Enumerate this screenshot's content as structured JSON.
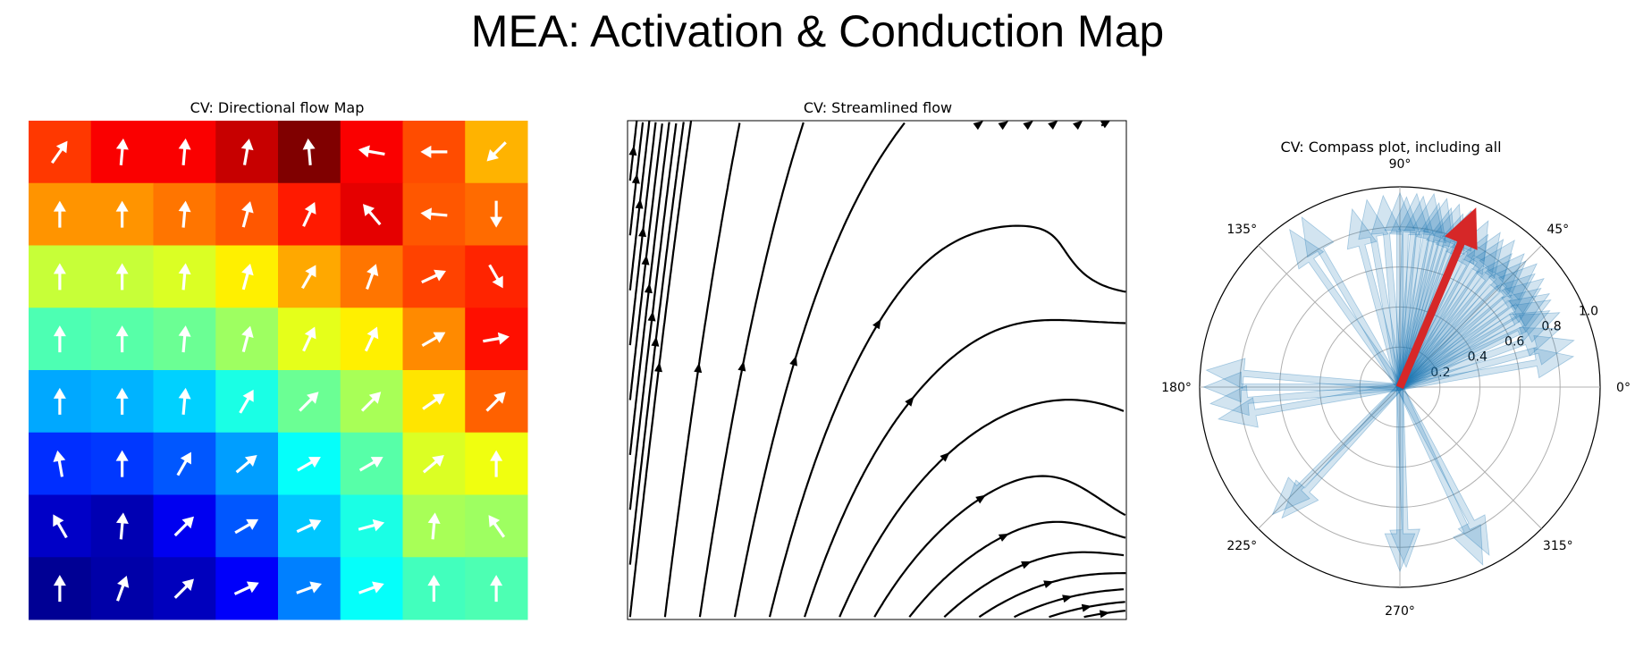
{
  "figure": {
    "title": "MEA: Activation & Conduction Map"
  },
  "chart_data": [
    {
      "type": "heatmap",
      "title": "CV: Directional flow Map",
      "rows": 8,
      "cols": 8,
      "colormap": "jet",
      "values": [
        [
          0.82,
          0.88,
          0.88,
          0.93,
          1.0,
          0.88,
          0.8,
          0.7
        ],
        [
          0.73,
          0.73,
          0.76,
          0.79,
          0.85,
          0.9,
          0.79,
          0.77
        ],
        [
          0.57,
          0.57,
          0.59,
          0.64,
          0.71,
          0.76,
          0.81,
          0.84
        ],
        [
          0.45,
          0.46,
          0.48,
          0.53,
          0.6,
          0.64,
          0.74,
          0.86
        ],
        [
          0.29,
          0.3,
          0.33,
          0.4,
          0.48,
          0.54,
          0.65,
          0.78
        ],
        [
          0.17,
          0.18,
          0.21,
          0.28,
          0.38,
          0.46,
          0.59,
          0.61
        ],
        [
          0.07,
          0.05,
          0.11,
          0.21,
          0.32,
          0.4,
          0.54,
          0.53
        ],
        [
          0.02,
          0.04,
          0.06,
          0.12,
          0.25,
          0.38,
          0.44,
          0.45
        ]
      ],
      "arrow_angles_deg": [
        [
          55,
          85,
          85,
          80,
          95,
          170,
          180,
          225
        ],
        [
          90,
          90,
          85,
          75,
          65,
          130,
          175,
          270
        ],
        [
          90,
          90,
          85,
          75,
          60,
          70,
          25,
          300
        ],
        [
          90,
          90,
          85,
          75,
          65,
          65,
          30,
          10
        ],
        [
          90,
          90,
          85,
          60,
          45,
          45,
          35,
          45
        ],
        [
          100,
          90,
          60,
          40,
          30,
          30,
          40,
          90
        ],
        [
          120,
          85,
          45,
          30,
          25,
          15,
          85,
          125
        ],
        [
          90,
          70,
          45,
          25,
          20,
          20,
          90,
          90
        ]
      ]
    },
    {
      "type": "streamplot",
      "title": "CV: Streamlined flow"
    },
    {
      "type": "polar",
      "title": "CV: Compass plot, including all",
      "theta_tick_labels": [
        "0°",
        "45°",
        "90°",
        "135°",
        "180°",
        "225°",
        "270°",
        "315°"
      ],
      "r_tick_labels": [
        "0.2",
        "0.4",
        "0.6",
        "0.8",
        "1.0"
      ],
      "rmax": 1.0,
      "vectors": [
        {
          "angle": 90,
          "r": 0.97
        },
        {
          "angle": 88,
          "r": 0.95
        },
        {
          "angle": 85,
          "r": 0.97
        },
        {
          "angle": 83,
          "r": 0.96
        },
        {
          "angle": 80,
          "r": 0.98
        },
        {
          "angle": 78,
          "r": 0.94
        },
        {
          "angle": 76,
          "r": 0.97
        },
        {
          "angle": 74,
          "r": 0.93
        },
        {
          "angle": 72,
          "r": 0.96
        },
        {
          "angle": 70,
          "r": 0.92
        },
        {
          "angle": 68,
          "r": 0.95
        },
        {
          "angle": 65,
          "r": 0.9
        },
        {
          "angle": 62,
          "r": 0.94
        },
        {
          "angle": 60,
          "r": 0.88
        },
        {
          "angle": 57,
          "r": 0.92
        },
        {
          "angle": 55,
          "r": 0.9
        },
        {
          "angle": 52,
          "r": 0.93
        },
        {
          "angle": 50,
          "r": 0.87
        },
        {
          "angle": 47,
          "r": 0.91
        },
        {
          "angle": 45,
          "r": 0.89
        },
        {
          "angle": 42,
          "r": 0.92
        },
        {
          "angle": 40,
          "r": 0.88
        },
        {
          "angle": 37,
          "r": 0.9
        },
        {
          "angle": 35,
          "r": 0.86
        },
        {
          "angle": 32,
          "r": 0.88
        },
        {
          "angle": 30,
          "r": 0.87
        },
        {
          "angle": 27,
          "r": 0.84
        },
        {
          "angle": 25,
          "r": 0.88
        },
        {
          "angle": 20,
          "r": 0.85
        },
        {
          "angle": 15,
          "r": 0.9
        },
        {
          "angle": 10,
          "r": 0.88
        },
        {
          "angle": 95,
          "r": 0.96
        },
        {
          "angle": 100,
          "r": 0.95
        },
        {
          "angle": 105,
          "r": 0.92
        },
        {
          "angle": 120,
          "r": 0.98
        },
        {
          "angle": 125,
          "r": 0.96
        },
        {
          "angle": 175,
          "r": 0.97
        },
        {
          "angle": 180,
          "r": 0.98
        },
        {
          "angle": 185,
          "r": 0.95
        },
        {
          "angle": 190,
          "r": 0.92
        },
        {
          "angle": 225,
          "r": 0.9
        },
        {
          "angle": 228,
          "r": 0.88
        },
        {
          "angle": 270,
          "r": 0.92
        },
        {
          "angle": 272,
          "r": 0.9
        },
        {
          "angle": 295,
          "r": 0.98
        },
        {
          "angle": 298,
          "r": 0.95
        }
      ],
      "mean_vector": {
        "angle": 67,
        "r": 0.97,
        "color": "#d62728"
      },
      "vector_color": "#1f77b4"
    }
  ]
}
